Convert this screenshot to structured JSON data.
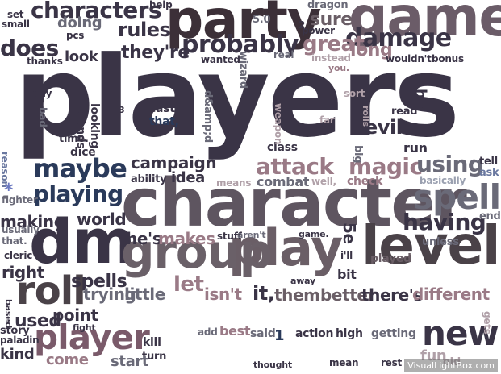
{
  "word_cloud": {
    "words": [
      {
        "text": "players",
        "color": "#3a3446"
      },
      {
        "text": "character",
        "color": "#5e5560"
      },
      {
        "text": "game",
        "color": "#6b5c68"
      },
      {
        "text": "party",
        "color": "#3c3038"
      },
      {
        "text": "level",
        "color": "#4a4248"
      },
      {
        "text": "play",
        "color": "#6a5e66"
      },
      {
        "text": "dm",
        "color": "#3a3446"
      },
      {
        "text": "group",
        "color": "#6a6068"
      },
      {
        "text": "roll",
        "color": "#4a4248"
      },
      {
        "text": "player",
        "color": "#7a5a6a"
      },
      {
        "text": "new",
        "color": "#3a3446"
      },
      {
        "text": "spell",
        "color": "#6a6a78"
      },
      {
        "text": "characters",
        "color": "#3a3446"
      },
      {
        "text": "damage",
        "color": "#3a3446"
      },
      {
        "text": "probably",
        "color": "#3a3446"
      },
      {
        "text": "great",
        "color": "#9a7a86"
      },
      {
        "text": "maybe",
        "color": "#2a3a5a"
      },
      {
        "text": "playing",
        "color": "#2a3a5a"
      },
      {
        "text": "magic",
        "color": "#9a7a86"
      },
      {
        "text": "attack",
        "color": "#9a7a86"
      },
      {
        "text": "having",
        "color": "#3a3446"
      },
      {
        "text": "using",
        "color": "#6a6a78"
      },
      {
        "text": "does",
        "color": "#3a3446"
      },
      {
        "text": "rules",
        "color": "#3a3446"
      },
      {
        "text": "they're",
        "color": "#3a3446"
      },
      {
        "text": "long",
        "color": "#9a7a86"
      },
      {
        "text": "sure",
        "color": "#6a5e66"
      },
      {
        "text": "evil",
        "color": "#3a3446"
      },
      {
        "text": "campaign",
        "color": "#3a3446"
      },
      {
        "text": "spells",
        "color": "#3a3446"
      },
      {
        "text": "he's",
        "color": "#3a3446"
      },
      {
        "text": "makes",
        "color": "#9a7a86"
      },
      {
        "text": "let",
        "color": "#9a7a86"
      },
      {
        "text": "isn't",
        "color": "#9a7a86"
      },
      {
        "text": "little",
        "color": "#6a6a78"
      },
      {
        "text": "trying",
        "color": "#6a6a78"
      },
      {
        "text": "it,",
        "color": "#3a3446"
      },
      {
        "text": "them.",
        "color": "#6a5e66"
      },
      {
        "text": "better",
        "color": "#6a5e66"
      },
      {
        "text": "there's",
        "color": "#3a3446"
      },
      {
        "text": "different",
        "color": "#9a7a86"
      },
      {
        "text": "used",
        "color": "#3a3446"
      },
      {
        "text": "point",
        "color": "#3a3446"
      },
      {
        "text": "making",
        "color": "#3a3446"
      },
      {
        "text": "world",
        "color": "#3a3446"
      },
      {
        "text": "right",
        "color": "#3a3446"
      },
      {
        "text": "look",
        "color": "#3a3446"
      },
      {
        "text": "doing",
        "color": "#6a6a78"
      },
      {
        "text": "idea",
        "color": "#3a3446"
      },
      {
        "text": "combat",
        "color": "#6a6a78"
      },
      {
        "text": "class",
        "color": "#3a3446"
      },
      {
        "text": "run",
        "color": "#3a3446"
      },
      {
        "text": "hit",
        "color": "#3a3446"
      },
      {
        "text": "5e",
        "color": "#3a3446"
      },
      {
        "text": "bit",
        "color": "#3a3446"
      },
      {
        "text": "played",
        "color": "#6a5e66"
      },
      {
        "text": "end",
        "color": "#6a6a78"
      },
      {
        "text": "unless",
        "color": "#6a6a78"
      },
      {
        "text": "tell",
        "color": "#3a3446"
      },
      {
        "text": "ask",
        "color": "#6a78a0"
      },
      {
        "text": "basically",
        "color": "#9aa0b0"
      },
      {
        "text": "check",
        "color": "#9a7a86"
      },
      {
        "text": "well,",
        "color": "#b0a0a8"
      },
      {
        "text": "means",
        "color": "#b0a0a8"
      },
      {
        "text": "d&amp;d",
        "color": "#6a6a78"
      },
      {
        "text": "cast",
        "color": "#3a3446"
      },
      {
        "text": "that,",
        "color": "#2a3a5a"
      },
      {
        "text": "dice",
        "color": "#3a3446"
      },
      {
        "text": "time.",
        "color": "#3a3446"
      },
      {
        "text": "ability",
        "color": "#3a3446"
      },
      {
        "text": "sounds",
        "color": "#3a3446"
      },
      {
        "text": "looking",
        "color": "#3a3446"
      },
      {
        "text": "bad",
        "color": "#6a6a78"
      },
      {
        "text": "guy",
        "color": "#3a3446"
      },
      {
        "text": "thanks",
        "color": "#3a3446"
      },
      {
        "text": "wanted",
        "color": "#3a3446"
      },
      {
        "text": "real",
        "color": "#6a6a78"
      },
      {
        "text": "instead",
        "color": "#b0a0a8"
      },
      {
        "text": "you.",
        "color": "#9a7a86"
      },
      {
        "text": "wouldn't",
        "color": "#3a3446"
      },
      {
        "text": "bonus",
        "color": "#3a3446"
      },
      {
        "text": "wizard",
        "color": "#6a6a78"
      },
      {
        "text": "dragon",
        "color": "#6a6a78"
      },
      {
        "text": "power",
        "color": "#3a3446"
      },
      {
        "text": "5.0",
        "color": "#6a6a78"
      },
      {
        "text": "2",
        "color": "#3a3446"
      },
      {
        "text": "help",
        "color": "#3a3446"
      },
      {
        "text": "set",
        "color": "#3a3446"
      },
      {
        "text": "small",
        "color": "#3a3446"
      },
      {
        "text": "pcs",
        "color": "#3a3446"
      },
      {
        "text": "sort",
        "color": "#b0a0a8"
      },
      {
        "text": "far",
        "color": "#b0a0a8"
      },
      {
        "text": "rolls",
        "color": "#b0a0a8"
      },
      {
        "text": "read",
        "color": "#3a3446"
      },
      {
        "text": "big",
        "color": "#6a6a78"
      },
      {
        "text": "weapon",
        "color": "#b0a0a8"
      },
      {
        "text": "reason",
        "color": "#6a78a0"
      },
      {
        "text": "fighter",
        "color": "#6a6a78"
      },
      {
        "text": "usually",
        "color": "#6a6a78"
      },
      {
        "text": "that.",
        "color": "#6a6a78"
      },
      {
        "text": "cleric",
        "color": "#3a3446"
      },
      {
        "text": "based",
        "color": "#3a3446"
      },
      {
        "text": "story",
        "color": "#3a3446"
      },
      {
        "text": "fight",
        "color": "#3a3446"
      },
      {
        "text": "paladin",
        "color": "#3a3446"
      },
      {
        "text": "kind",
        "color": "#3a3446"
      },
      {
        "text": "come",
        "color": "#9a7a86"
      },
      {
        "text": "kill",
        "color": "#3a3446"
      },
      {
        "text": "turn",
        "color": "#3a3446"
      },
      {
        "text": "start",
        "color": "#6a6a78"
      },
      {
        "text": "add",
        "color": "#6a6a78"
      },
      {
        "text": "best",
        "color": "#9a7a86"
      },
      {
        "text": "said",
        "color": "#6a6a78"
      },
      {
        "text": "1",
        "color": "#2a3a5a"
      },
      {
        "text": "action",
        "color": "#3a3446"
      },
      {
        "text": "high",
        "color": "#3a3446"
      },
      {
        "text": "getting",
        "color": "#6a6a78"
      },
      {
        "text": "thought",
        "color": "#3a3446"
      },
      {
        "text": "mean",
        "color": "#3a3446"
      },
      {
        "text": "rest",
        "color": "#3a3446"
      },
      {
        "text": "fun",
        "color": "#b0a0a8"
      },
      {
        "text": "old",
        "color": "#b0a0a8"
      },
      {
        "text": "gets",
        "color": "#b0a0a8"
      },
      {
        "text": "stuff",
        "color": "#3a3446"
      },
      {
        "text": "aren't",
        "color": "#6a6a78"
      },
      {
        "text": "game.",
        "color": "#3a3446"
      },
      {
        "text": "i'll",
        "color": "#3a3446"
      },
      {
        "text": "away",
        "color": "#3a3446"
      },
      {
        "text": "3",
        "color": "#3a3446"
      },
      {
        "text": "*",
        "color": "#6a78c0"
      }
    ],
    "watermark": "VisualLightBox.com"
  }
}
